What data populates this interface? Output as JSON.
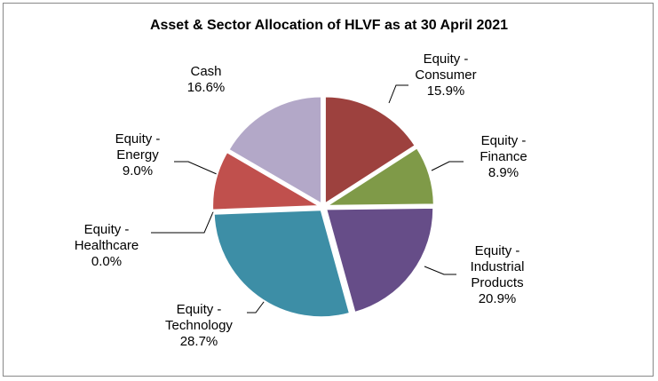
{
  "chart_data": {
    "type": "pie",
    "title": "Asset & Sector Allocation of HLVF as at 30 April 2021",
    "categories": [
      "Equity - Consumer",
      "Equity - Finance",
      "Equity - Industrial Products",
      "Equity - Technology",
      "Equity - Healthcare",
      "Equity - Energy",
      "Cash"
    ],
    "values": [
      15.9,
      8.9,
      20.9,
      28.7,
      0.0,
      9.0,
      16.6
    ],
    "value_labels": [
      "15.9%",
      "8.9%",
      "20.9%",
      "28.7%",
      "0.0%",
      "9.0%",
      "16.6%"
    ],
    "colors": [
      "#9d413e",
      "#7f9a48",
      "#664d88",
      "#3d8ea6",
      "#4f81bd",
      "#c0504d",
      "#b3a8c8"
    ]
  }
}
